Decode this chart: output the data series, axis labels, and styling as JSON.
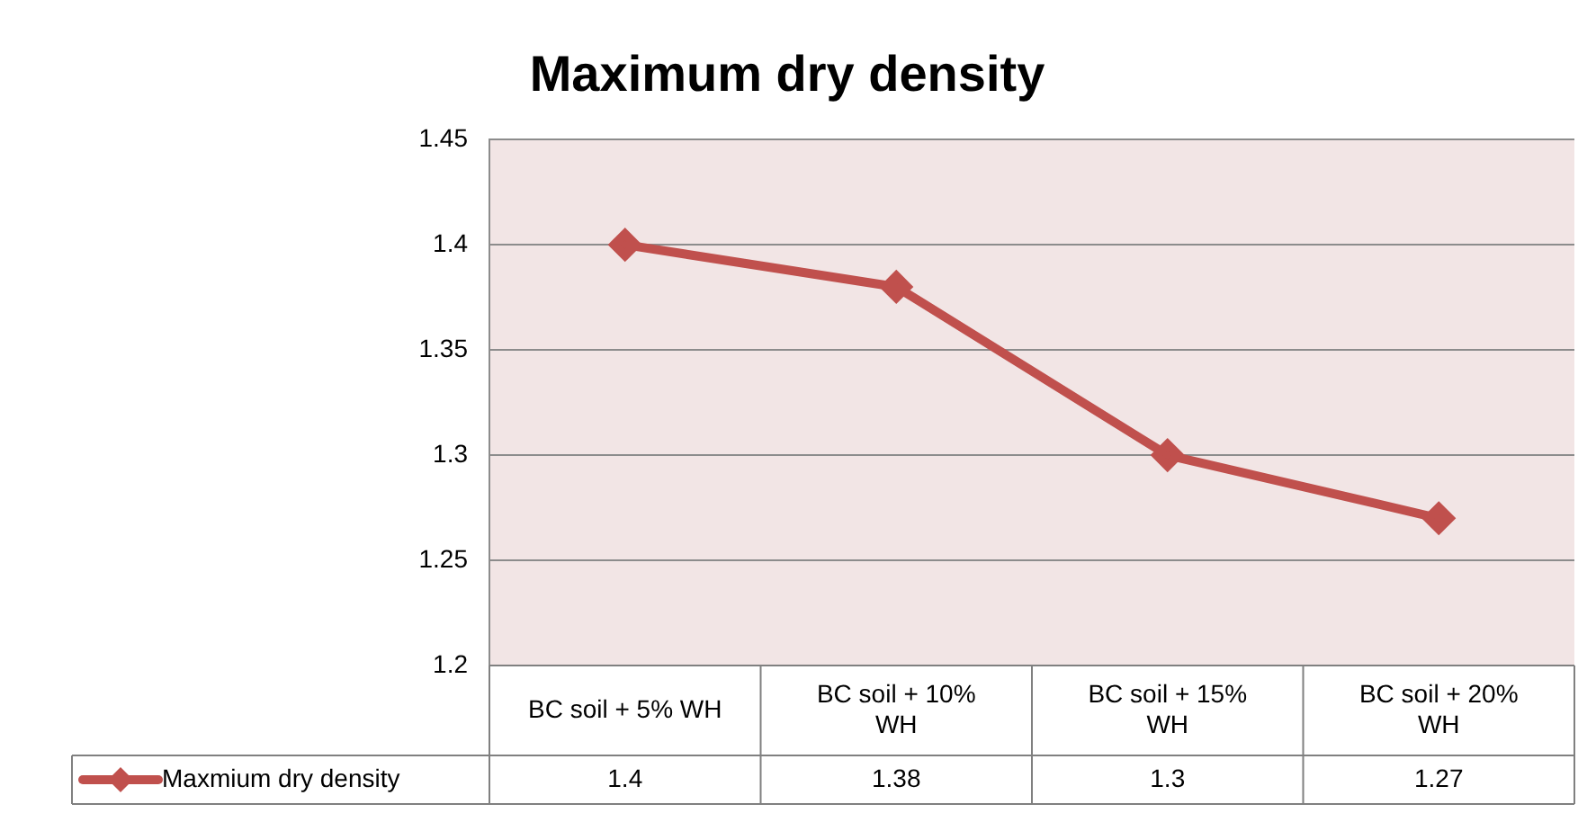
{
  "chart_data": {
    "type": "line",
    "title": "Maximum dry density",
    "categories": [
      "BC soil + 5% WH",
      "BC soil + 10% WH",
      "BC soil + 15% WH",
      "BC soil + 20% WH"
    ],
    "series": [
      {
        "name": "Maxmium dry density",
        "color": "#c0504d",
        "values": [
          1.4,
          1.38,
          1.3,
          1.27
        ]
      }
    ],
    "ylim": [
      1.2,
      1.45
    ],
    "yticks": [
      1.2,
      1.25,
      1.3,
      1.35,
      1.4,
      1.45
    ],
    "grid": "y",
    "legend": "bottom",
    "marker": "diamond",
    "line_style": "solid",
    "data_labels": true
  }
}
